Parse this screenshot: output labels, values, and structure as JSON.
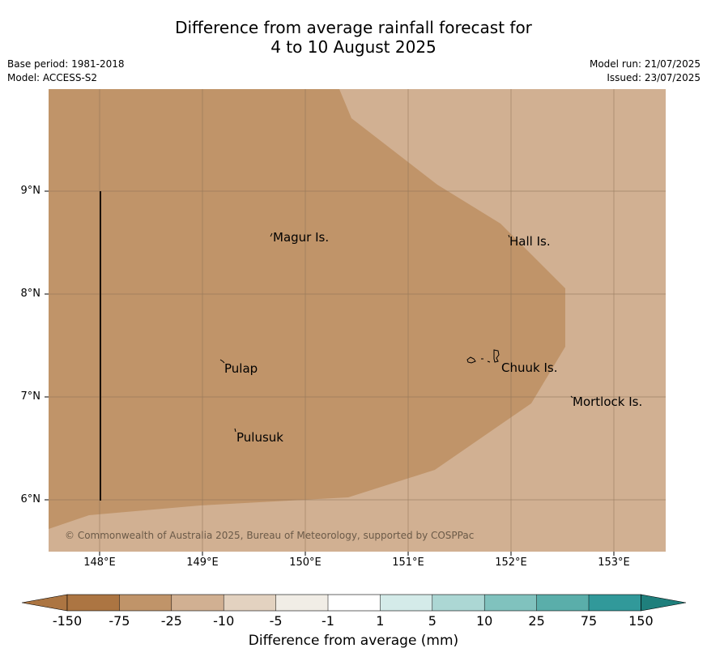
{
  "header": {
    "title_line1": "Difference from average rainfall forecast for",
    "title_line2": "4 to 10 August 2025",
    "base_period": "Base period: 1981-2018",
    "model": "Model: ACCESS-S2",
    "model_run": "Model run: 21/07/2025",
    "issued": "Issued: 23/07/2025"
  },
  "map": {
    "lat_labels": [
      "9°N",
      "8°N",
      "7°N",
      "6°N"
    ],
    "lon_labels": [
      "148°E",
      "149°E",
      "150°E",
      "151°E",
      "152°E",
      "153°E"
    ],
    "places": [
      {
        "name": "Magur Is."
      },
      {
        "name": "Hall Is."
      },
      {
        "name": "Pulap"
      },
      {
        "name": "Chuuk Is."
      },
      {
        "name": "Mortlock Is."
      },
      {
        "name": "Pulusuk"
      }
    ],
    "copyright": "© Commonwealth of Australia 2025, Bureau of Meteorology, supported by COSPPac",
    "colors": {
      "minus_25_to_minus_75": "#c09469",
      "minus_10_to_minus_25": "#d1b092",
      "gridline": "#8a7055"
    }
  },
  "colorbar": {
    "ticks": [
      "-150",
      "-75",
      "-25",
      "-10",
      "-5",
      "-1",
      "1",
      "5",
      "10",
      "25",
      "75",
      "150"
    ],
    "colors": [
      "#ac7542",
      "#c09469",
      "#d1b092",
      "#e3d2c0",
      "#f1ede6",
      "#ffffff",
      "#d4ebe9",
      "#acd7d4",
      "#80c2be",
      "#5aaeaa",
      "#31999a",
      "#1f7f7c"
    ],
    "label": "Difference from average (mm)"
  }
}
